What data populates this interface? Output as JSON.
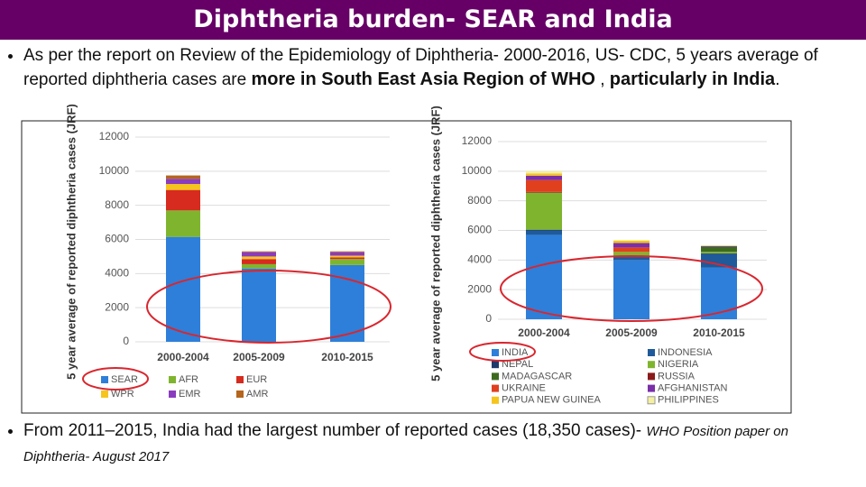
{
  "header": {
    "title": "Diphtheria burden- SEAR and India"
  },
  "bullets": [
    {
      "parts": [
        "As per the report on Review of the Epidemiology of Diphtheria- 2000-2016, US- CDC, 5 years average of reported diphtheria cases are ",
        "more in South East Asia Region of WHO",
        " , ",
        "particularly in India",
        "."
      ]
    },
    {
      "parts": [
        "From 2011–2015, India had the largest number of reported cases (18,350 cases)- ",
        "WHO Position paper on Diphtheria- August 2017"
      ]
    }
  ],
  "chart_data": [
    {
      "type": "stacked-bar",
      "y_label": "5 year average of reported diphtheria cases (JRF)",
      "categories": [
        "2000-2004",
        "2005-2009",
        "2010-2015"
      ],
      "ylim": [
        0,
        12000
      ],
      "yticks": [
        0,
        2000,
        4000,
        6000,
        8000,
        10000,
        12000
      ],
      "grid": true,
      "series": [
        {
          "name": "SEAR",
          "color": "#2e7fd9",
          "values": [
            6150,
            4300,
            4500
          ]
        },
        {
          "name": "AFR",
          "color": "#7fb52e",
          "values": [
            1550,
            250,
            350
          ]
        },
        {
          "name": "EUR",
          "color": "#d62b1e",
          "values": [
            1200,
            300,
            100
          ]
        },
        {
          "name": "WPR",
          "color": "#f5c51c",
          "values": [
            350,
            150,
            100
          ]
        },
        {
          "name": "EMR",
          "color": "#8a3cbf",
          "values": [
            300,
            250,
            200
          ]
        },
        {
          "name": "AMR",
          "color": "#b5651d",
          "values": [
            200,
            50,
            50
          ]
        }
      ]
    },
    {
      "type": "stacked-bar",
      "y_label": "5 year average of reported diphtheria cases (JRF)",
      "categories": [
        "2000-2004",
        "2005-2009",
        "2010-2015"
      ],
      "ylim": [
        0,
        12000
      ],
      "yticks": [
        0,
        2000,
        4000,
        6000,
        8000,
        10000,
        12000
      ],
      "grid": true,
      "series": [
        {
          "name": "INDIA",
          "color": "#2e7fd9",
          "values": [
            5700,
            4000,
            3500
          ]
        },
        {
          "name": "INDONESIA",
          "color": "#1f5a9a",
          "values": [
            300,
            200,
            900
          ]
        },
        {
          "name": "NEPAL",
          "color": "#1f3a6b",
          "values": [
            50,
            50,
            50
          ]
        },
        {
          "name": "NIGERIA",
          "color": "#7fb52e",
          "values": [
            2500,
            300,
            100
          ]
        },
        {
          "name": "MADAGASCAR",
          "color": "#3d6b1e",
          "values": [
            0,
            0,
            350
          ]
        },
        {
          "name": "RUSSIA",
          "color": "#8b1a1a",
          "values": [
            50,
            0,
            0
          ]
        },
        {
          "name": "UKRAINE",
          "color": "#e0401e",
          "values": [
            800,
            300,
            0
          ]
        },
        {
          "name": "AFGHANISTAN",
          "color": "#7a2fa8",
          "values": [
            300,
            300,
            50
          ]
        },
        {
          "name": "PAPUA NEW GUINEA",
          "color": "#f5c51c",
          "values": [
            150,
            150,
            0
          ]
        },
        {
          "name": "PHILIPPINES",
          "color": "#f5f0a0",
          "values": [
            150,
            50,
            50
          ]
        }
      ]
    }
  ]
}
